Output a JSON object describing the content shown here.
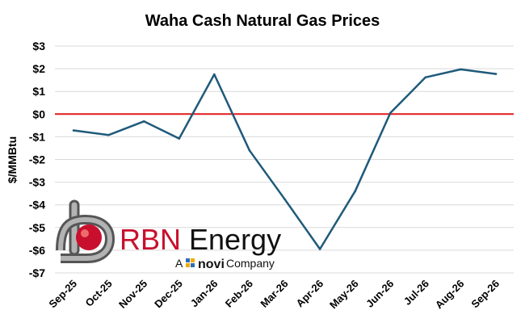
{
  "chart_data": {
    "type": "line",
    "title": "Waha Cash Natural Gas Prices",
    "ylabel": "$/MMBtu",
    "xlabel": "",
    "categories": [
      "Sep-25",
      "Oct-25",
      "Nov-25",
      "Dec-25",
      "Jan-26",
      "Feb-26",
      "Mar-26",
      "Apr-26",
      "May-26",
      "Jun-26",
      "Jul-26",
      "Aug-26",
      "Sep-26"
    ],
    "series": [
      {
        "values": [
          -0.72,
          -0.92,
          -0.32,
          -1.08,
          1.75,
          -1.6,
          -3.75,
          -5.95,
          -3.4,
          0.05,
          1.62,
          1.97,
          1.77
        ]
      }
    ],
    "reference_line": {
      "y": 0
    },
    "ylim": [
      -7,
      3
    ],
    "yticks": [
      {
        "v": 3,
        "label": "$3"
      },
      {
        "v": 2,
        "label": "$2"
      },
      {
        "v": 1,
        "label": "$1"
      },
      {
        "v": 0,
        "label": "$0"
      },
      {
        "v": -1,
        "label": "-$1"
      },
      {
        "v": -2,
        "label": "-$2"
      },
      {
        "v": -3,
        "label": "-$3"
      },
      {
        "v": -4,
        "label": "-$4"
      },
      {
        "v": -5,
        "label": "-$5"
      },
      {
        "v": -6,
        "label": "-$6"
      },
      {
        "v": -7,
        "label": "-$7"
      }
    ],
    "grid": true,
    "colors": {
      "line": "#1f5a7a",
      "reference": "#e31a1c",
      "grid": "#d9d9d9"
    }
  },
  "logo": {
    "brand_red": "RBN",
    "brand_dark": " Energy",
    "tagline_prefix": "A",
    "tagline_brand": "novi",
    "tagline_suffix": "Company",
    "colors": {
      "red": "#c8102e",
      "pipe": "#8c8c8c"
    }
  }
}
